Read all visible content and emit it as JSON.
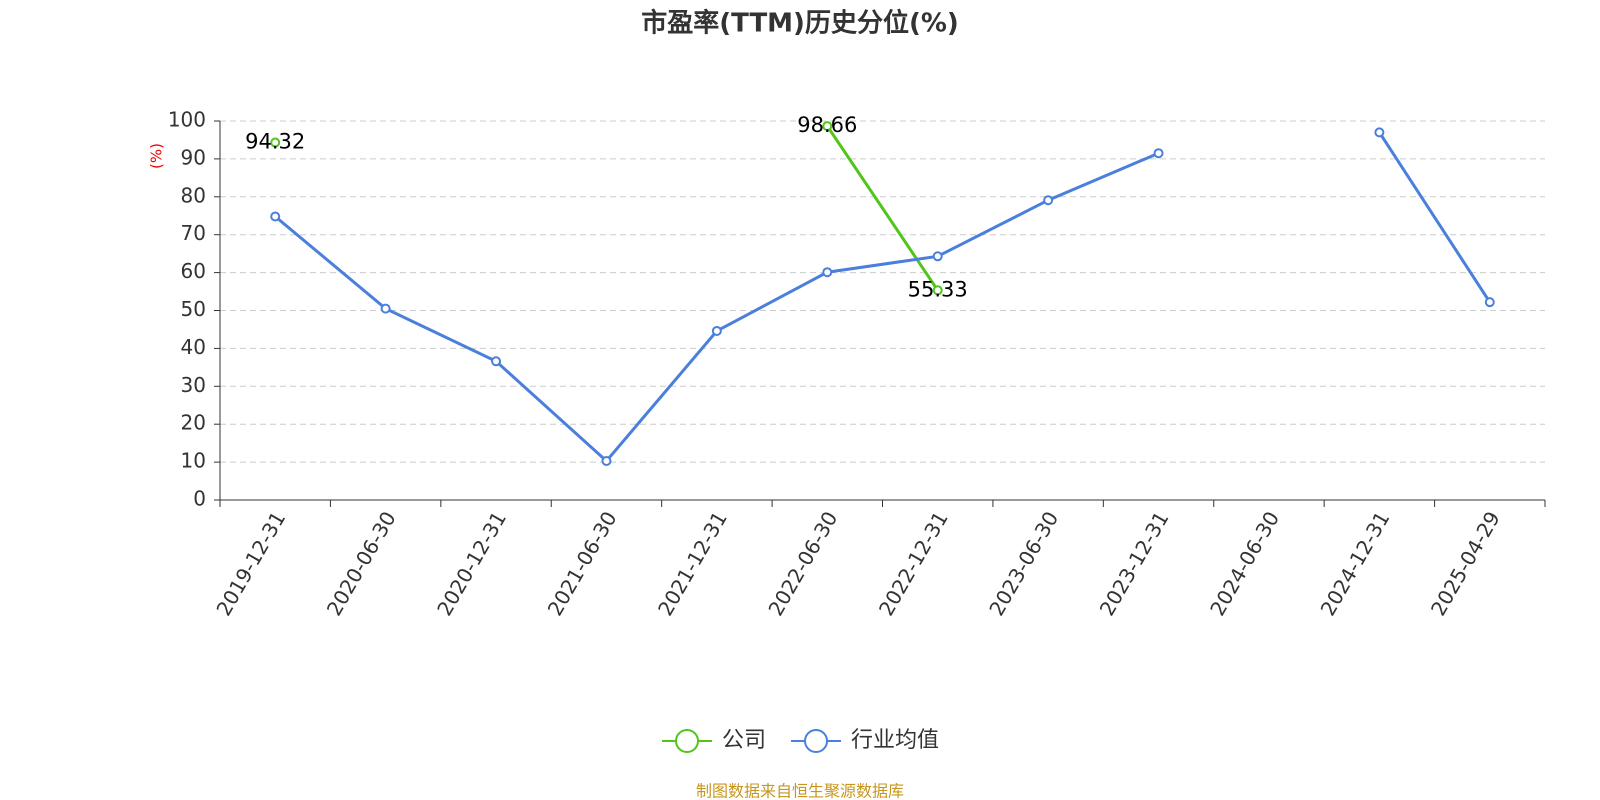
{
  "chart_data": {
    "type": "line",
    "title": "市盈率(TTM)历史分位(%)",
    "y_label": "(%)",
    "footer": "制图数据来自恒生聚源数据库",
    "categories": [
      "2019-12-31",
      "2020-06-30",
      "2020-12-31",
      "2021-06-30",
      "2021-12-31",
      "2022-06-30",
      "2022-12-31",
      "2023-06-30",
      "2023-12-31",
      "2024-06-30",
      "2024-12-31",
      "2025-04-29"
    ],
    "series": [
      {
        "name": "公司",
        "color": "#52c41a",
        "show_labels": true,
        "values": [
          94.32,
          null,
          null,
          null,
          null,
          98.66,
          55.33,
          null,
          null,
          null,
          null,
          null
        ]
      },
      {
        "name": "行业均值",
        "color": "#4a7fdc",
        "show_labels": false,
        "values": [
          74.8,
          50.5,
          36.6,
          10.3,
          44.6,
          60.1,
          64.3,
          79.1,
          91.5,
          null,
          97.0,
          52.2
        ]
      }
    ],
    "ylim": [
      0,
      100
    ],
    "yticks": [
      0,
      10,
      20,
      30,
      40,
      50,
      60,
      70,
      80,
      90,
      100
    ],
    "grid": true
  }
}
